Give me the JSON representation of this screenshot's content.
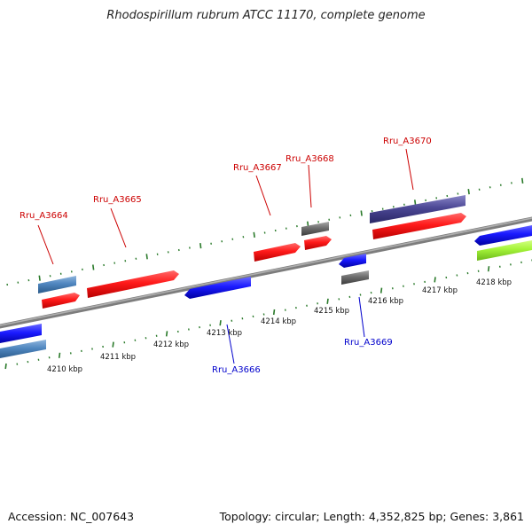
{
  "title": "Rhodospirillum rubrum ATCC 11170, complete genome",
  "footer": {
    "accession": "Accession: NC_007643",
    "info": "Topology: circular; Length: 4,352,825 bp; Genes: 3,861"
  },
  "colors": {
    "forward_label": "#cc0000",
    "reverse_label": "#0000cc",
    "tick": "#2a7a2a",
    "backbone": "#888888"
  },
  "kbp_labels": [
    "4210 kbp",
    "4211 kbp",
    "4212 kbp",
    "4213 kbp",
    "4214 kbp",
    "4215 kbp",
    "4216 kbp",
    "4217 kbp",
    "4218 kbp"
  ],
  "gene_labels": {
    "g3664": "Rru_A3664",
    "g3665": "Rru_A3665",
    "g3666": "Rru_A3666",
    "g3667": "Rru_A3667",
    "g3668": "Rru_A3668",
    "g3669": "Rru_A3669",
    "g3670": "Rru_A3670"
  }
}
